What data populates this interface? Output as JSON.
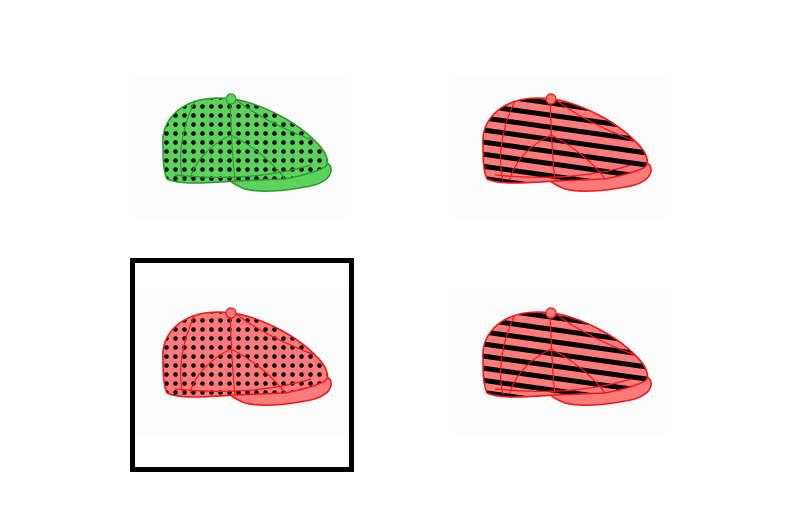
{
  "grid": {
    "options": [
      {
        "pattern": "dots",
        "color": "#5cd35c",
        "stroke": "#2f9a2f",
        "selected": false
      },
      {
        "pattern": "stripes",
        "color": "#ff7b7b",
        "stroke": "#f01818",
        "selected": false
      },
      {
        "pattern": "dots",
        "color": "#ff7b7b",
        "stroke": "#f01818",
        "selected": true
      },
      {
        "pattern": "stripes",
        "color": "#ff7b7b",
        "stroke": "#f01818",
        "selected": false
      }
    ],
    "icon": "flat-cap-icon",
    "selection_color": "#000000"
  }
}
